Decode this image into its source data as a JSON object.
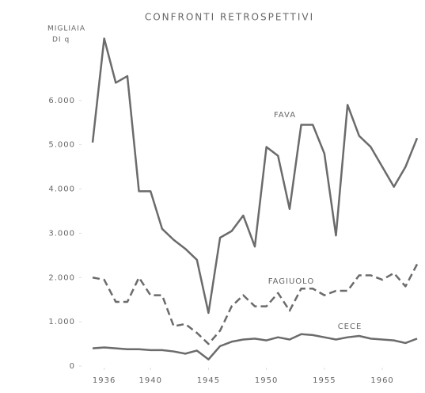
{
  "chart_data": {
    "type": "line",
    "title": "CONFRONTI RETROSPETTIVI",
    "y_label": [
      "MIGLIAIA",
      "DI q"
    ],
    "x": [
      1935,
      1936,
      1937,
      1938,
      1939,
      1940,
      1941,
      1942,
      1943,
      1944,
      1945,
      1946,
      1947,
      1948,
      1949,
      1950,
      1951,
      1952,
      1953,
      1954,
      1955,
      1956,
      1957,
      1958,
      1959,
      1960,
      1961,
      1962,
      1963
    ],
    "series": [
      {
        "name": "FAVA",
        "color": "#6b6b6b",
        "dash": false,
        "values": [
          5050,
          7400,
          6400,
          6550,
          3950,
          3950,
          3100,
          2850,
          2650,
          2400,
          1200,
          2900,
          3050,
          3400,
          2700,
          4950,
          4750,
          3550,
          5450,
          5450,
          4800,
          2950,
          5900,
          5200,
          4950,
          4500,
          4050,
          4500,
          5150
        ]
      },
      {
        "name": "FAGIUOLO",
        "color": "#6b6b6b",
        "dash": true,
        "values": [
          2000,
          1950,
          1450,
          1450,
          2000,
          1600,
          1600,
          900,
          950,
          750,
          500,
          800,
          1350,
          1600,
          1350,
          1350,
          1650,
          1250,
          1750,
          1750,
          1600,
          1700,
          1700,
          2050,
          2050,
          1950,
          2100,
          1800,
          2300
        ]
      },
      {
        "name": "CECE",
        "color": "#6b6b6b",
        "dash": false,
        "values": [
          400,
          420,
          400,
          380,
          380,
          360,
          360,
          330,
          280,
          350,
          150,
          450,
          550,
          600,
          620,
          580,
          650,
          600,
          720,
          700,
          650,
          600,
          650,
          680,
          620,
          600,
          580,
          520,
          620
        ]
      }
    ],
    "xlim": [
      1935,
      1963
    ],
    "xticks": [
      1936,
      1940,
      1945,
      1950,
      1955,
      1960
    ],
    "ylim": [
      0,
      7500
    ],
    "yticks": [
      0,
      {
        "value": 1000,
        "label": "1.000"
      },
      {
        "value": 2000,
        "label": "2.000"
      },
      {
        "value": 3000,
        "label": "3.000"
      },
      {
        "value": 4000,
        "label": "4.000"
      },
      {
        "value": 5000,
        "label": "5.000"
      },
      {
        "value": 6000,
        "label": "6.000"
      }
    ],
    "grid": false
  }
}
